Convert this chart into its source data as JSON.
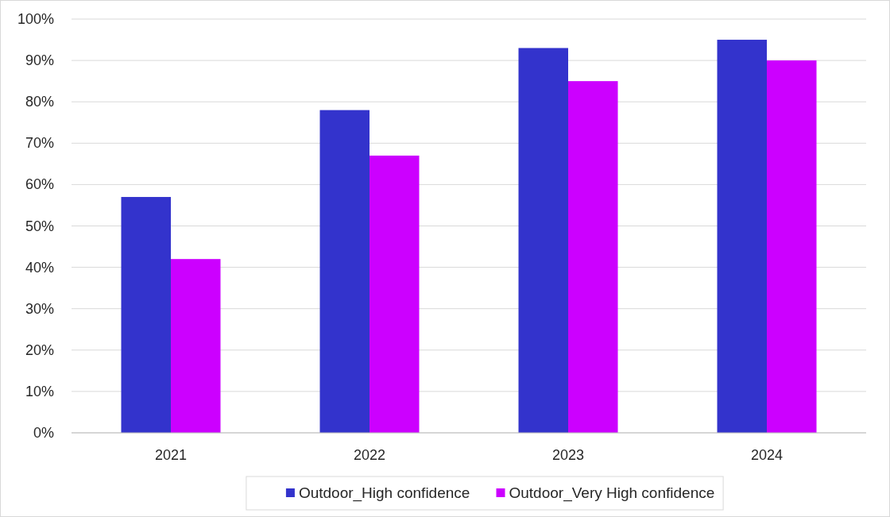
{
  "chart_data": {
    "type": "bar",
    "categories": [
      "2021",
      "2022",
      "2023",
      "2024"
    ],
    "series": [
      {
        "name": "Outdoor_High confidence",
        "color": "#3333cc",
        "values": [
          57,
          78,
          93,
          95
        ]
      },
      {
        "name": "Outdoor_Very High confidence",
        "color": "#cc00ff",
        "values": [
          42,
          67,
          85,
          90
        ]
      }
    ],
    "ylim": [
      0,
      100
    ],
    "yticks": [
      {
        "value": 0,
        "label": "0%"
      },
      {
        "value": 10,
        "label": "10%"
      },
      {
        "value": 20,
        "label": "20%"
      },
      {
        "value": 30,
        "label": "30%"
      },
      {
        "value": 40,
        "label": "40%"
      },
      {
        "value": 50,
        "label": "50%"
      },
      {
        "value": 60,
        "label": "60%"
      },
      {
        "value": 70,
        "label": "70%"
      },
      {
        "value": 80,
        "label": "80%"
      },
      {
        "value": 90,
        "label": "90%"
      },
      {
        "value": 100,
        "label": "100%"
      }
    ],
    "grid": "y",
    "legend": "bottom"
  }
}
